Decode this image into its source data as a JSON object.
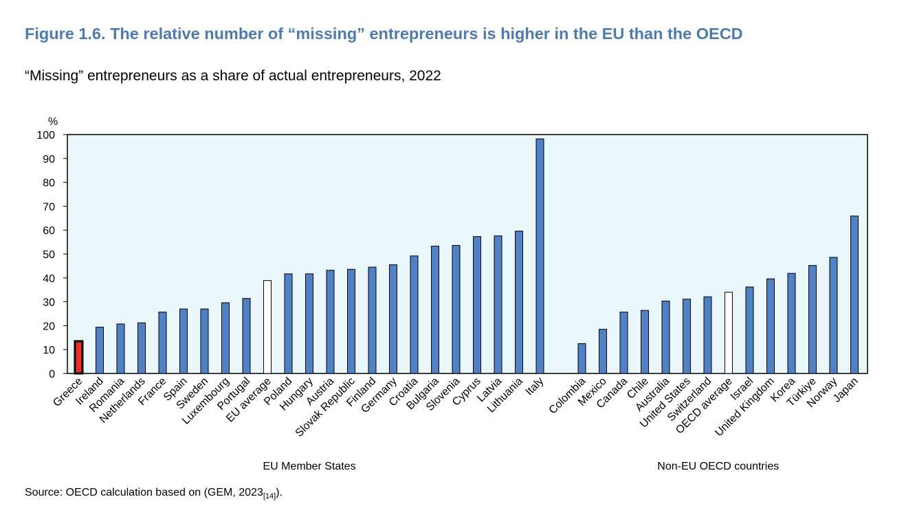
{
  "figure": {
    "title": "Figure 1.6. The relative number of “missing” entrepreneurs is higher in the EU than the OECD",
    "subtitle": "“Missing” entrepreneurs as a share of actual entrepreneurs, 2022"
  },
  "source": {
    "text": "Source: OECD calculation based on (GEM, 2023",
    "ref": "[14]",
    "suffix": ")."
  },
  "colors": {
    "plot_background": "#e9f7fb",
    "bar_fill": "#4f81c7",
    "average_fill": "#ffffff",
    "highlight_fill": "#ee2e24",
    "bar_outline": "#000000"
  },
  "chart_data": {
    "type": "bar",
    "ylabel": "%",
    "ylim": [
      0,
      100
    ],
    "yticks": [
      0,
      10,
      20,
      30,
      40,
      50,
      60,
      70,
      80,
      90,
      100
    ],
    "grid": false,
    "legend": "none",
    "groups": [
      {
        "label": "EU Member States",
        "categories": [
          "Greece",
          "Ireland",
          "Romania",
          "Netherlands",
          "France",
          "Spain",
          "Sweden",
          "Luxembourg",
          "Portugal",
          "EU average",
          "Poland",
          "Hungary",
          "Austria",
          "Slovak Republic",
          "Finland",
          "Germany",
          "Croatia",
          "Bulgaria",
          "Slovenia",
          "Cyprus",
          "Latvia",
          "Lithuania",
          "Italy"
        ],
        "values": [
          13.5,
          19.4,
          20.7,
          21.2,
          25.7,
          27,
          27,
          29.6,
          31.4,
          38.9,
          41.7,
          41.7,
          43.2,
          43.6,
          44.5,
          45.5,
          49.2,
          53.3,
          53.6,
          57.3,
          57.6,
          59.6,
          98.2
        ],
        "styles": [
          "highlight",
          "bar",
          "bar",
          "bar",
          "bar",
          "bar",
          "bar",
          "bar",
          "bar",
          "average",
          "bar",
          "bar",
          "bar",
          "bar",
          "bar",
          "bar",
          "bar",
          "bar",
          "bar",
          "bar",
          "bar",
          "bar",
          "bar"
        ]
      },
      {
        "label": "Non-EU OECD countries",
        "categories": [
          "Colombia",
          "Mexico",
          "Canada",
          "Chile",
          "Australia",
          "United States",
          "Switzerland",
          "OECD average",
          "Israel",
          "United Kingdom",
          "Korea",
          "Türkiye",
          "Norway",
          "Japan"
        ],
        "values": [
          12.5,
          18.5,
          25.7,
          26.4,
          30.3,
          31.1,
          32.1,
          34,
          36.2,
          39.6,
          41.9,
          45.2,
          48.6,
          65.9
        ],
        "styles": [
          "bar",
          "bar",
          "bar",
          "bar",
          "bar",
          "bar",
          "bar",
          "average",
          "bar",
          "bar",
          "bar",
          "bar",
          "bar",
          "bar"
        ]
      }
    ]
  }
}
